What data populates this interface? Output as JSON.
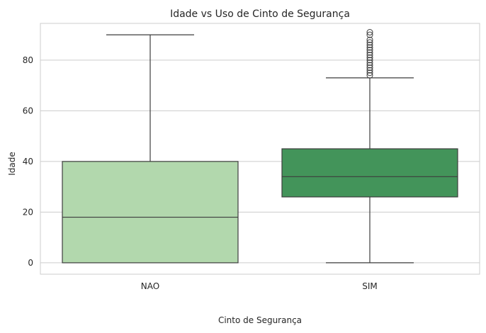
{
  "chart_data": {
    "type": "box",
    "title": "Idade vs Uso de Cinto de Segurança",
    "xlabel": "Cinto de Segurança",
    "ylabel": "Idade",
    "ylim": [
      -4.5,
      94.5
    ],
    "yticks": [
      0,
      20,
      40,
      60,
      80
    ],
    "grid": true,
    "categories": [
      "NAO",
      "SIM"
    ],
    "boxes": [
      {
        "category": "NAO",
        "whisker_low": 0,
        "q1": 0,
        "median": 18,
        "q3": 40,
        "whisker_high": 90,
        "outliers": [],
        "color": "#b2d8ad"
      },
      {
        "category": "SIM",
        "whisker_low": 0,
        "q1": 26,
        "median": 34,
        "q3": 45,
        "whisker_high": 73,
        "outliers": [
          74,
          75,
          76,
          77,
          78,
          79,
          80,
          81,
          82,
          83,
          84,
          85,
          86,
          87,
          88,
          90,
          91
        ],
        "color": "#43945a"
      }
    ],
    "colors": {
      "grid": "#cccccc",
      "frame": "#cccccc",
      "lines": "#3d3d3d"
    }
  }
}
